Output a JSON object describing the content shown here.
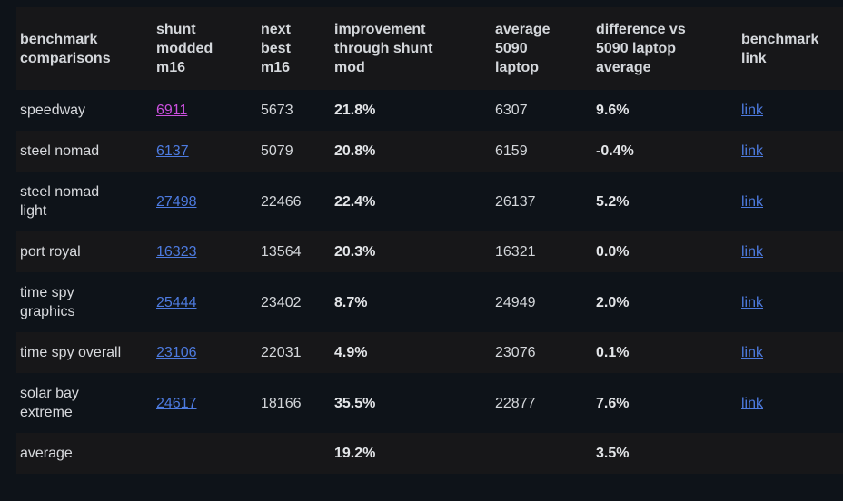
{
  "theme": {
    "page_bg": "#0e1319",
    "stripe_bg": "#171719",
    "text": "#d8dade",
    "link_color": "#4d7be0",
    "visited_link_color": "#cb50de"
  },
  "table": {
    "columns": [
      {
        "key": "name",
        "label": "benchmark\ncomparisons"
      },
      {
        "key": "modded",
        "label": "shunt\nmodded\nm16"
      },
      {
        "key": "next_best",
        "label": "next\nbest\nm16"
      },
      {
        "key": "improvement",
        "label": "improvement\nthrough shunt\nmod"
      },
      {
        "key": "avg5090",
        "label": "average\n5090\nlaptop"
      },
      {
        "key": "diff",
        "label": "difference vs\n5090 laptop\naverage"
      },
      {
        "key": "link",
        "label": "benchmark\nlink"
      }
    ],
    "rows": [
      {
        "name": "speedway",
        "modded": "6911",
        "modded_visited": true,
        "next_best": "5673",
        "improvement": "21.8%",
        "avg5090": "6307",
        "diff": "9.6%",
        "link": "link"
      },
      {
        "name": "steel nomad",
        "modded": "6137",
        "modded_visited": false,
        "next_best": "5079",
        "improvement": "20.8%",
        "avg5090": "6159",
        "diff": "-0.4%",
        "link": "link"
      },
      {
        "name": "steel nomad\nlight",
        "modded": "27498",
        "modded_visited": false,
        "next_best": "22466",
        "improvement": "22.4%",
        "avg5090": "26137",
        "diff": "5.2%",
        "link": "link"
      },
      {
        "name": "port royal",
        "modded": "16323",
        "modded_visited": false,
        "next_best": "13564",
        "improvement": "20.3%",
        "avg5090": "16321",
        "diff": "0.0%",
        "link": "link"
      },
      {
        "name": "time spy\ngraphics",
        "modded": "25444",
        "modded_visited": false,
        "next_best": "23402",
        "improvement": "8.7%",
        "avg5090": "24949",
        "diff": "2.0%",
        "link": "link"
      },
      {
        "name": "time spy overall",
        "modded": "23106",
        "modded_visited": false,
        "next_best": "22031",
        "improvement": "4.9%",
        "avg5090": "23076",
        "diff": "0.1%",
        "link": "link"
      },
      {
        "name": "solar bay\nextreme",
        "modded": "24617",
        "modded_visited": false,
        "next_best": "18166",
        "improvement": "35.5%",
        "avg5090": "22877",
        "diff": "7.6%",
        "link": "link"
      },
      {
        "name": "average",
        "modded": "",
        "modded_visited": false,
        "next_best": "",
        "improvement": "19.2%",
        "avg5090": "",
        "diff": "3.5%",
        "link": ""
      }
    ]
  }
}
